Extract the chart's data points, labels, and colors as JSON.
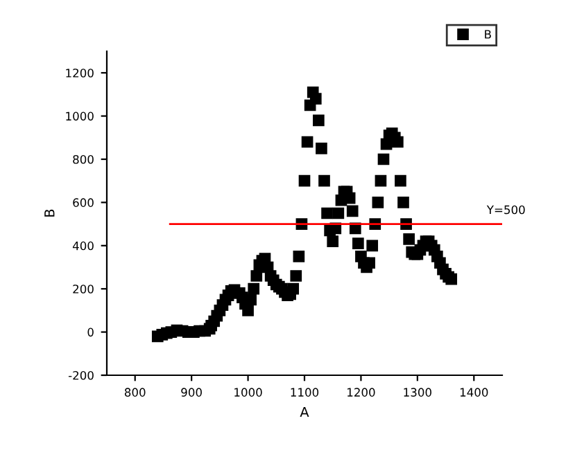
{
  "chart_data": {
    "type": "scatter",
    "xlabel": "A",
    "ylabel": "B",
    "marker": "square",
    "legend": "top right",
    "xlim": [
      750,
      1450
    ],
    "ylim": [
      -200,
      1300
    ],
    "xticks": [
      800,
      900,
      1000,
      1100,
      1200,
      1300,
      1400
    ],
    "yticks": [
      -200,
      0,
      200,
      400,
      600,
      800,
      1000,
      1200
    ],
    "ref_lines": [
      {
        "axis": "y",
        "value": 500,
        "label": "Y=500",
        "color": "#ff0000"
      }
    ],
    "series": [
      {
        "name": "B",
        "color": "#000000",
        "x": [
          840,
          848,
          856,
          864,
          874,
          884,
          894,
          904,
          914,
          924,
          932,
          935,
          940,
          945,
          950,
          955,
          960,
          965,
          970,
          976,
          985,
          990,
          995,
          1000,
          1005,
          1010,
          1015,
          1020,
          1025,
          1030,
          1035,
          1040,
          1045,
          1050,
          1055,
          1060,
          1065,
          1070,
          1075,
          1080,
          1085,
          1090,
          1095,
          1100,
          1105,
          1110,
          1115,
          1120,
          1125,
          1130,
          1135,
          1140,
          1145,
          1150,
          1155,
          1160,
          1165,
          1170,
          1175,
          1180,
          1185,
          1190,
          1195,
          1200,
          1205,
          1210,
          1215,
          1220,
          1225,
          1230,
          1235,
          1240,
          1245,
          1250,
          1255,
          1260,
          1265,
          1270,
          1275,
          1280,
          1285,
          1290,
          1295,
          1300,
          1305,
          1310,
          1315,
          1320,
          1325,
          1330,
          1335,
          1340,
          1345,
          1350,
          1355,
          1360
        ],
        "values": [
          -20,
          -12,
          -5,
          0,
          8,
          5,
          0,
          0,
          5,
          5,
          15,
          30,
          50,
          75,
          100,
          125,
          150,
          170,
          190,
          195,
          180,
          160,
          130,
          100,
          150,
          200,
          260,
          310,
          330,
          340,
          300,
          260,
          240,
          220,
          210,
          200,
          185,
          170,
          175,
          200,
          260,
          350,
          500,
          700,
          880,
          1050,
          1110,
          1080,
          980,
          850,
          700,
          550,
          470,
          420,
          480,
          550,
          610,
          650,
          650,
          620,
          560,
          480,
          410,
          350,
          320,
          300,
          320,
          400,
          500,
          600,
          700,
          800,
          870,
          910,
          920,
          900,
          880,
          700,
          600,
          500,
          430,
          370,
          360,
          360,
          380,
          400,
          420,
          420,
          400,
          380,
          350,
          320,
          290,
          270,
          255,
          245
        ]
      }
    ]
  }
}
